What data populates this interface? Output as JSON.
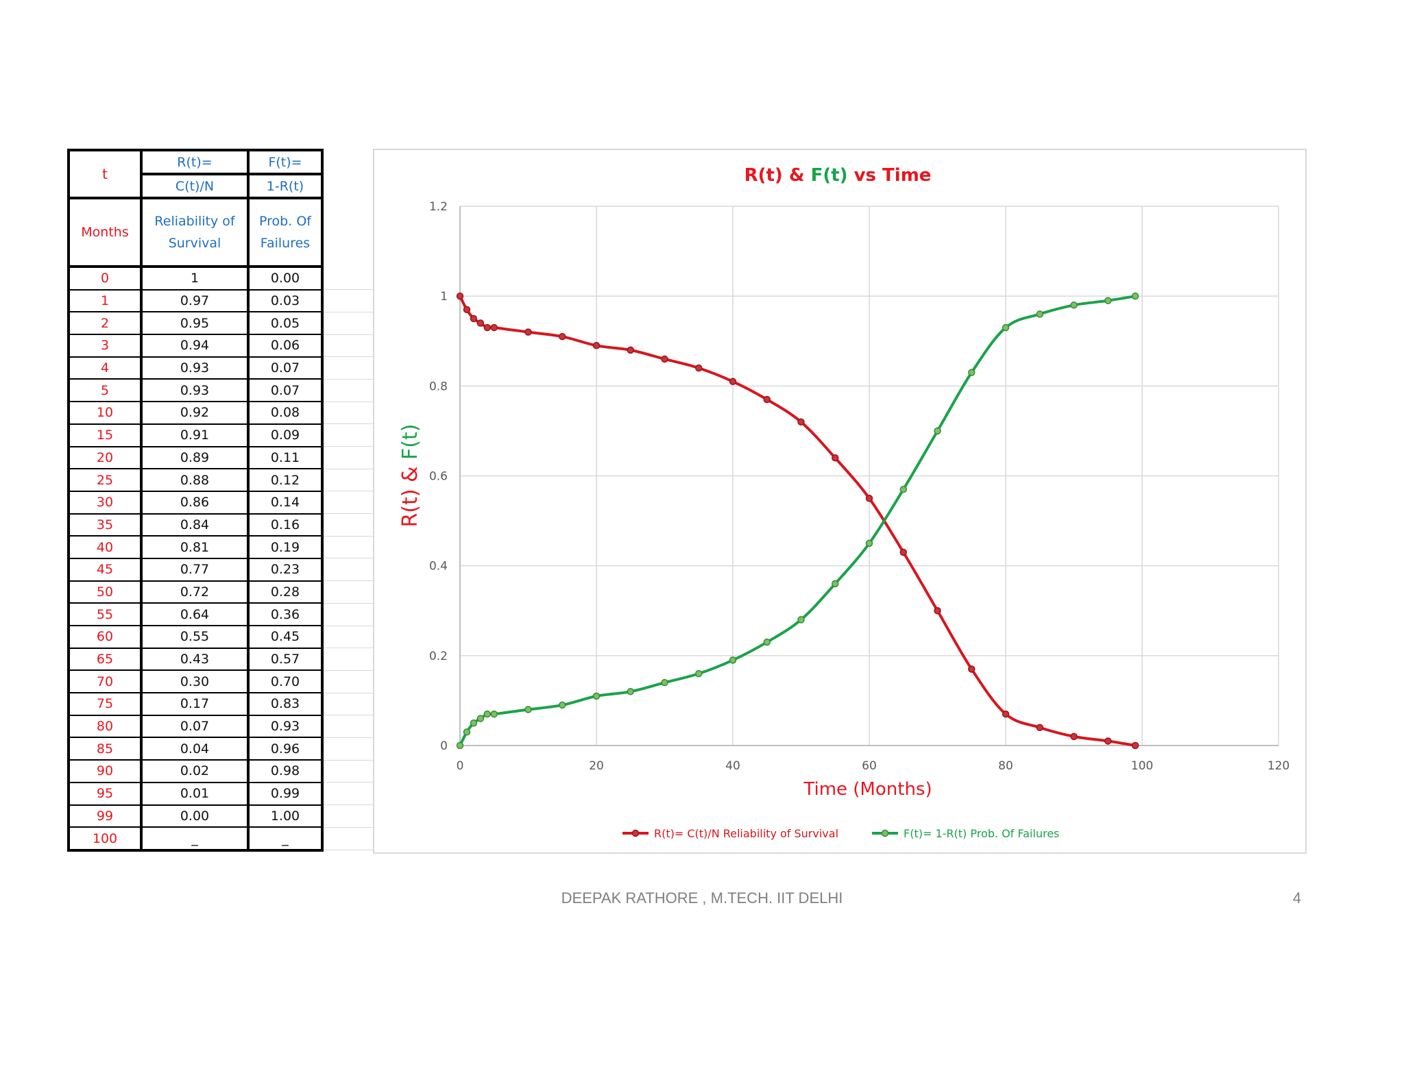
{
  "table": {
    "header": {
      "t": "t",
      "r_formula_1": "R(t)=",
      "r_formula_2": "C(t)/N",
      "f_formula_1": "F(t)=",
      "f_formula_2": "1-R(t)",
      "months": "Months",
      "r_desc": "Reliability of Survival",
      "f_desc": "Prob. Of Failures"
    },
    "rows": [
      {
        "t": "0",
        "r": "1",
        "f": "0.00"
      },
      {
        "t": "1",
        "r": "0.97",
        "f": "0.03"
      },
      {
        "t": "2",
        "r": "0.95",
        "f": "0.05"
      },
      {
        "t": "3",
        "r": "0.94",
        "f": "0.06"
      },
      {
        "t": "4",
        "r": "0.93",
        "f": "0.07"
      },
      {
        "t": "5",
        "r": "0.93",
        "f": "0.07"
      },
      {
        "t": "10",
        "r": "0.92",
        "f": "0.08"
      },
      {
        "t": "15",
        "r": "0.91",
        "f": "0.09"
      },
      {
        "t": "20",
        "r": "0.89",
        "f": "0.11"
      },
      {
        "t": "25",
        "r": "0.88",
        "f": "0.12"
      },
      {
        "t": "30",
        "r": "0.86",
        "f": "0.14"
      },
      {
        "t": "35",
        "r": "0.84",
        "f": "0.16"
      },
      {
        "t": "40",
        "r": "0.81",
        "f": "0.19"
      },
      {
        "t": "45",
        "r": "0.77",
        "f": "0.23"
      },
      {
        "t": "50",
        "r": "0.72",
        "f": "0.28"
      },
      {
        "t": "55",
        "r": "0.64",
        "f": "0.36"
      },
      {
        "t": "60",
        "r": "0.55",
        "f": "0.45"
      },
      {
        "t": "65",
        "r": "0.43",
        "f": "0.57"
      },
      {
        "t": "70",
        "r": "0.30",
        "f": "0.70"
      },
      {
        "t": "75",
        "r": "0.17",
        "f": "0.83"
      },
      {
        "t": "80",
        "r": "0.07",
        "f": "0.93"
      },
      {
        "t": "85",
        "r": "0.04",
        "f": "0.96"
      },
      {
        "t": "90",
        "r": "0.02",
        "f": "0.98"
      },
      {
        "t": "95",
        "r": "0.01",
        "f": "0.99"
      },
      {
        "t": "99",
        "r": "0.00",
        "f": "1.00"
      },
      {
        "t": "100",
        "r": "_",
        "f": "_"
      }
    ]
  },
  "chart_data": {
    "type": "line",
    "title_parts": [
      {
        "text": "R(t)",
        "color": "#e8161e"
      },
      {
        "text": " & ",
        "color": "#e8161e"
      },
      {
        "text": "F(t)",
        "color": "#1aa34a"
      },
      {
        "text": " vs Time",
        "color": "#e8161e"
      }
    ],
    "xlabel": "Time (Months)",
    "ylabel_parts": [
      {
        "text": "R(t)",
        "color": "#e8161e"
      },
      {
        "text": " & ",
        "color": "#e8161e"
      },
      {
        "text": "F(t)",
        "color": "#1aa34a"
      }
    ],
    "xlim": [
      0,
      120
    ],
    "ylim": [
      0,
      1.2
    ],
    "x_ticks": [
      "0",
      "20",
      "40",
      "60",
      "80",
      "100",
      "120"
    ],
    "y_ticks": [
      "0",
      "0.2",
      "0.4",
      "0.6",
      "0.8",
      "1",
      "1.2"
    ],
    "grid": true,
    "legend_position": "bottom",
    "x": [
      0,
      1,
      2,
      3,
      4,
      5,
      10,
      15,
      20,
      25,
      30,
      35,
      40,
      45,
      50,
      55,
      60,
      65,
      70,
      75,
      80,
      85,
      90,
      95,
      99
    ],
    "series": [
      {
        "name": "R(t)= C(t)/N Reliability of Survival",
        "color": "#d7161e",
        "values": [
          1,
          0.97,
          0.95,
          0.94,
          0.93,
          0.93,
          0.92,
          0.91,
          0.89,
          0.88,
          0.86,
          0.84,
          0.81,
          0.77,
          0.72,
          0.64,
          0.55,
          0.43,
          0.3,
          0.17,
          0.07,
          0.04,
          0.02,
          0.01,
          0.0
        ]
      },
      {
        "name": "F(t)= 1-R(t) Prob. Of Failures",
        "color": "#1aa34a",
        "values": [
          0,
          0.03,
          0.05,
          0.06,
          0.07,
          0.07,
          0.08,
          0.09,
          0.11,
          0.12,
          0.14,
          0.16,
          0.19,
          0.23,
          0.28,
          0.36,
          0.45,
          0.57,
          0.7,
          0.83,
          0.93,
          0.96,
          0.98,
          0.99,
          1.0
        ]
      }
    ]
  },
  "footer": {
    "author": "DEEPAK RATHORE , M.TECH. IIT DELHI",
    "page_number": "4"
  }
}
